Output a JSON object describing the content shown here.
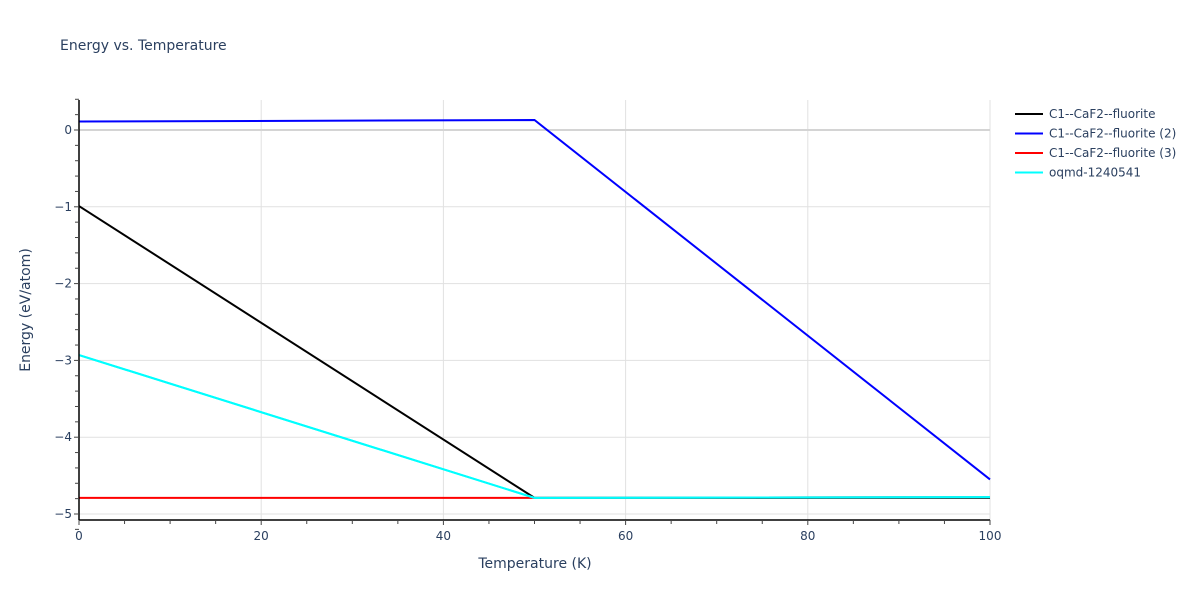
{
  "chart_data": {
    "type": "line",
    "title": "Energy vs. Temperature",
    "xlabel": "Temperature (K)",
    "ylabel": "Energy (eV/atom)",
    "xlim": [
      0,
      100
    ],
    "ylim": [
      -5.2,
      0.4
    ],
    "xticks": [
      0,
      20,
      40,
      60,
      80,
      100
    ],
    "yticks": [
      0,
      -1,
      -2,
      -3,
      -4,
      -5
    ],
    "ytick_labels": [
      "0",
      "−1",
      "−2",
      "−3",
      "−4",
      "−5"
    ],
    "grid": true,
    "legend_position": "right",
    "series": [
      {
        "name": "C1--CaF2--fluorite",
        "color": "#000000",
        "x": [
          0,
          50,
          100
        ],
        "y": [
          -0.99,
          -4.79,
          -4.79
        ]
      },
      {
        "name": "C1--CaF2--fluorite (2)",
        "color": "#0000ff",
        "x": [
          0,
          50,
          100
        ],
        "y": [
          0.11,
          0.13,
          -4.55
        ]
      },
      {
        "name": "C1--CaF2--fluorite (3)",
        "color": "#ff0000",
        "x": [
          0,
          50,
          100
        ],
        "y": [
          -4.79,
          -4.79,
          -4.78
        ]
      },
      {
        "name": "oqmd-1240541",
        "color": "#00ffff",
        "x": [
          0,
          50,
          100
        ],
        "y": [
          -2.93,
          -4.79,
          -4.78
        ]
      }
    ]
  }
}
